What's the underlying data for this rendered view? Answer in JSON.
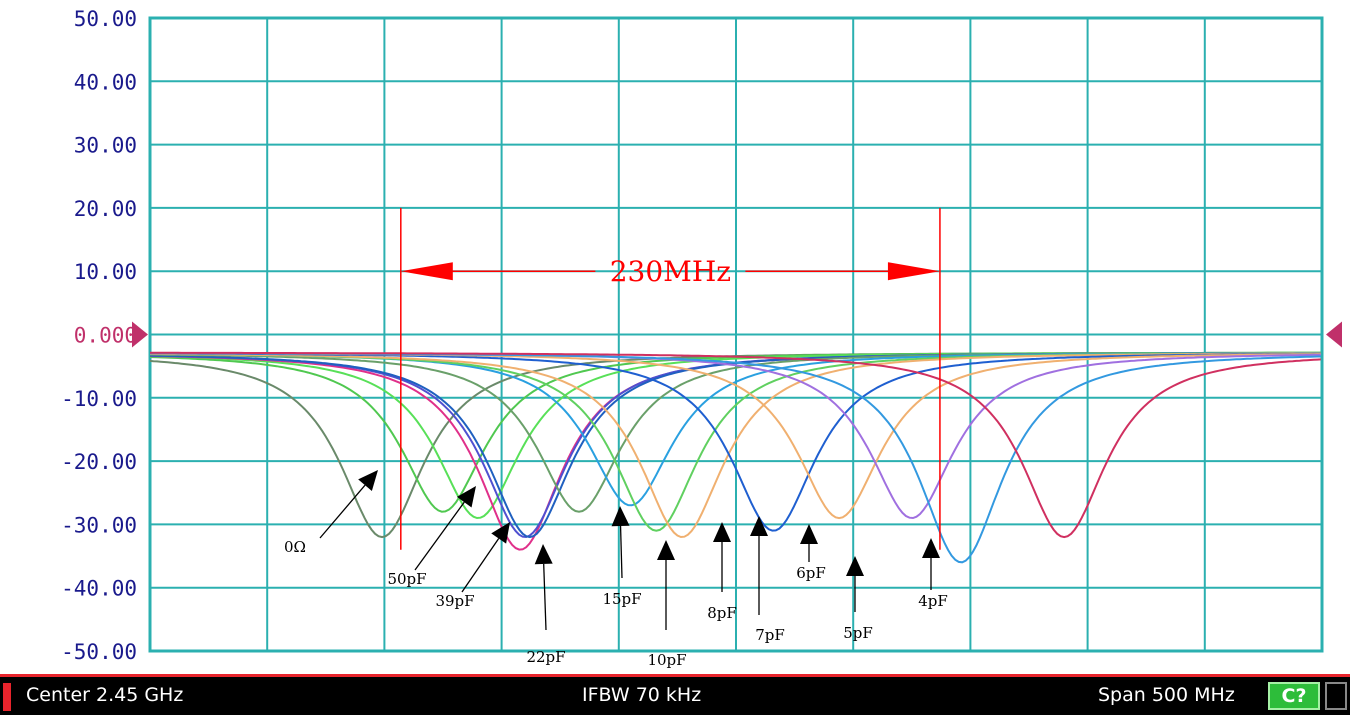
{
  "chart_data": {
    "type": "line",
    "xlim": [
      2200,
      2700
    ],
    "x_divisions": 10,
    "ylim": [
      -50,
      50
    ],
    "yticks": [
      "50.00",
      "40.00",
      "30.00",
      "20.00",
      "10.00",
      "0.000",
      "-10.00",
      "-20.00",
      "-30.00",
      "-40.00",
      "-50.00"
    ],
    "grid": true,
    "colors": {
      "grid": "#2bb0b0",
      "frame": "#2bb0b0",
      "annotation": "#ff0000",
      "tick_text": "#1a1a8c",
      "zero_tick_text": "#c0306a"
    },
    "series": [
      {
        "label": "0Ω",
        "center": 2299,
        "depth": -32,
        "color": "#6a8a6a"
      },
      {
        "label": "50pF",
        "center": 2325,
        "depth": -28,
        "color": "#50c850"
      },
      {
        "label": "39pF",
        "center": 2340,
        "depth": -29,
        "color": "#58e058"
      },
      {
        "label": "22pF",
        "center": 2358,
        "depth": -34,
        "color": "#e0308a"
      },
      {
        "label": "",
        "center": 2360,
        "depth": -32,
        "color": "#5050d0"
      },
      {
        "label": "",
        "center": 2362,
        "depth": -32,
        "color": "#2060c0"
      },
      {
        "label": "",
        "center": 2383,
        "depth": -28,
        "color": "#6aa06a"
      },
      {
        "label": "15pF",
        "center": 2405,
        "depth": -27,
        "color": "#2aa0e0"
      },
      {
        "label": "",
        "center": 2416,
        "depth": -31,
        "color": "#60d060"
      },
      {
        "label": "10pF",
        "center": 2427,
        "depth": -32,
        "color": "#f0b070"
      },
      {
        "label": "8pF",
        "center": 2466,
        "depth": -31,
        "color": "#1f5fd0"
      },
      {
        "label": "7pF",
        "center": 2494,
        "depth": -29,
        "color": "#f0b070"
      },
      {
        "label": "6pF",
        "center": 2525,
        "depth": -29,
        "color": "#a070e0"
      },
      {
        "label": "5pF",
        "center": 2546,
        "depth": -36,
        "color": "#3399e0"
      },
      {
        "label": "4pF",
        "center": 2590,
        "depth": -32,
        "color": "#d03060"
      }
    ],
    "annotations": {
      "bandwidth_label": "230MHz",
      "bandwidth_start": 2307,
      "bandwidth_end": 2537,
      "bandwidth_level": 10
    }
  },
  "statusbar": {
    "center": "Center 2.45 GHz",
    "ifbw": "IFBW 70 kHz",
    "span": "Span 500 MHz",
    "badge": "C?"
  }
}
